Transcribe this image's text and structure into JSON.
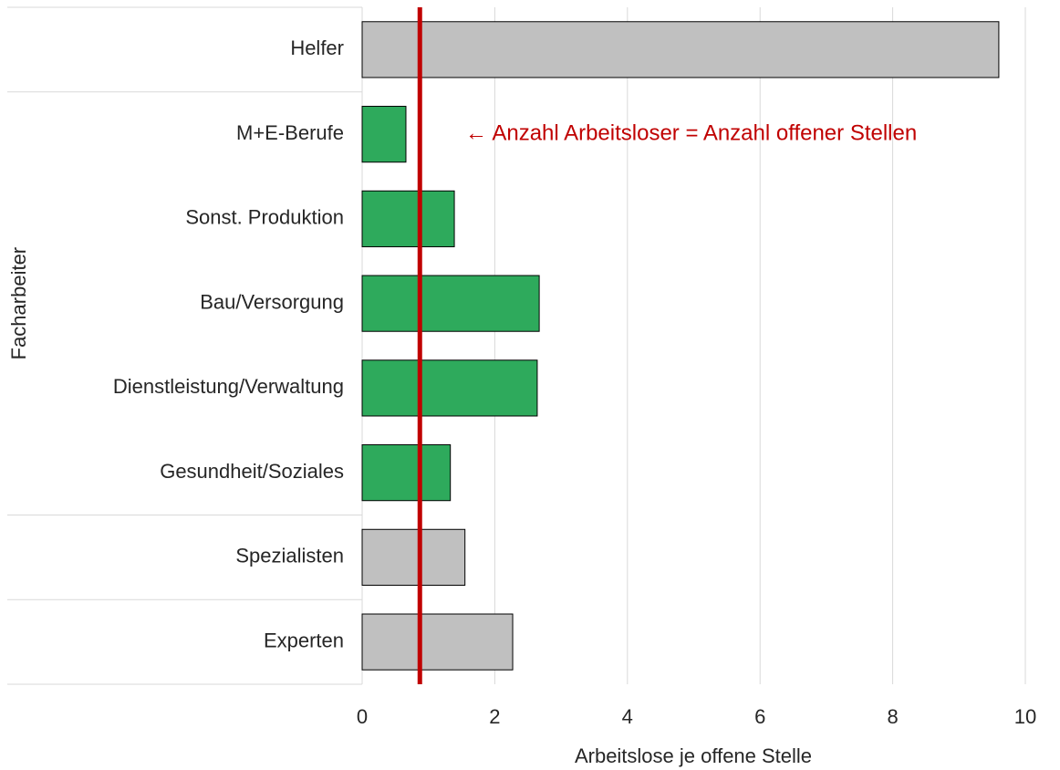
{
  "chart_data": {
    "type": "barh",
    "categories": [
      "Helfer",
      "M+E-Berufe",
      "Sonst. Produktion",
      "Bau/Versorgung",
      "Dienstleistung/Verwaltung",
      "Gesundheit/Soziales",
      "Spezialisten",
      "Experten"
    ],
    "values": [
      9.6,
      0.66,
      1.39,
      2.67,
      2.64,
      1.33,
      1.55,
      2.27
    ],
    "colors": [
      "#c0c0c0",
      "#2eaa5c",
      "#2eaa5c",
      "#2eaa5c",
      "#2eaa5c",
      "#2eaa5c",
      "#c0c0c0",
      "#c0c0c0"
    ],
    "groups": [
      {
        "label": "Facharbeiter",
        "members": [
          1,
          2,
          3,
          4,
          5
        ]
      }
    ],
    "xlim": [
      0,
      10
    ],
    "xticks": [
      0,
      2,
      4,
      6,
      8,
      10
    ],
    "grid": true,
    "xlabel": "Arbeitslose je offene Stelle",
    "reference_line": {
      "value": 0.87,
      "color": "#c00000",
      "label": "← Anzahl  Arbeitsloser = Anzahl  offener Stellen"
    }
  }
}
